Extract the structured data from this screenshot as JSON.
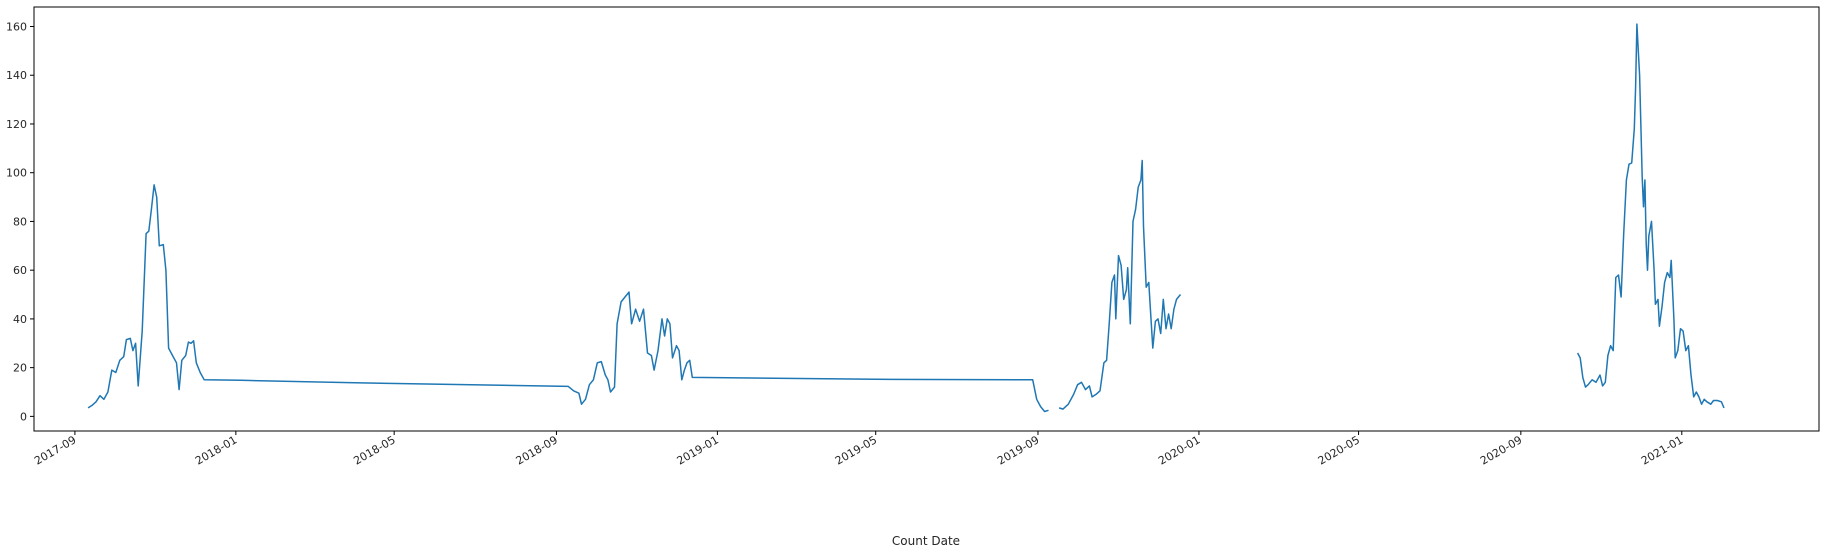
{
  "chart_data": {
    "type": "line",
    "title": "",
    "xlabel": "Count Date",
    "ylabel": "",
    "x_axis_type": "date",
    "xlim": [
      "2017-08-01",
      "2021-04-15"
    ],
    "ylim": [
      -6,
      168
    ],
    "x_ticks": [
      {
        "date": "2017-09-01",
        "label": "2017-09"
      },
      {
        "date": "2018-01-01",
        "label": "2018-01"
      },
      {
        "date": "2018-05-01",
        "label": "2018-05"
      },
      {
        "date": "2018-09-01",
        "label": "2018-09"
      },
      {
        "date": "2019-01-01",
        "label": "2019-01"
      },
      {
        "date": "2019-05-01",
        "label": "2019-05"
      },
      {
        "date": "2019-09-01",
        "label": "2019-09"
      },
      {
        "date": "2020-01-01",
        "label": "2020-01"
      },
      {
        "date": "2020-05-01",
        "label": "2020-05"
      },
      {
        "date": "2020-09-01",
        "label": "2020-09"
      },
      {
        "date": "2021-01-01",
        "label": "2021-01"
      }
    ],
    "y_ticks": [
      0,
      20,
      40,
      60,
      80,
      100,
      120,
      140,
      160
    ],
    "grid": false,
    "legend": "none",
    "line_color": "#1f77b4",
    "series": [
      {
        "segments": [
          [
            [
              "2017-09-11",
              3.5
            ],
            [
              "2017-09-14",
              4.5
            ],
            [
              "2017-09-17",
              6
            ],
            [
              "2017-09-20",
              8.5
            ],
            [
              "2017-09-23",
              7
            ],
            [
              "2017-09-26",
              10
            ],
            [
              "2017-09-29",
              19
            ],
            [
              "2017-10-02",
              18
            ],
            [
              "2017-10-05",
              23
            ],
            [
              "2017-10-08",
              24.5
            ],
            [
              "2017-10-10",
              31.5
            ],
            [
              "2017-10-13",
              32
            ],
            [
              "2017-10-15",
              27
            ],
            [
              "2017-10-17",
              30
            ],
            [
              "2017-10-19",
              12.5
            ],
            [
              "2017-10-22",
              35
            ],
            [
              "2017-10-25",
              75
            ],
            [
              "2017-10-27",
              76
            ],
            [
              "2017-10-29",
              85
            ],
            [
              "2017-10-31",
              95
            ],
            [
              "2017-11-02",
              90
            ],
            [
              "2017-11-04",
              70
            ],
            [
              "2017-11-07",
              70.5
            ],
            [
              "2017-11-09",
              60
            ],
            [
              "2017-11-11",
              28
            ],
            [
              "2017-11-14",
              25
            ],
            [
              "2017-11-17",
              22
            ],
            [
              "2017-11-19",
              11
            ],
            [
              "2017-11-21",
              23
            ],
            [
              "2017-11-24",
              25
            ],
            [
              "2017-11-26",
              30.5
            ],
            [
              "2017-11-28",
              30
            ],
            [
              "2017-11-30",
              31
            ],
            [
              "2017-12-02",
              22
            ],
            [
              "2017-12-05",
              18
            ],
            [
              "2017-12-08",
              15
            ],
            [
              "2018-01-05",
              14.8
            ],
            [
              "2018-04-01",
              13.8
            ],
            [
              "2018-09-10",
              12.3
            ],
            [
              "2018-09-14",
              10.5
            ],
            [
              "2018-09-18",
              9.5
            ],
            [
              "2018-09-20",
              5
            ],
            [
              "2018-09-23",
              7
            ],
            [
              "2018-09-26",
              13
            ],
            [
              "2018-09-29",
              15
            ],
            [
              "2018-10-02",
              22
            ],
            [
              "2018-10-05",
              22.5
            ],
            [
              "2018-10-08",
              17
            ],
            [
              "2018-10-10",
              15
            ],
            [
              "2018-10-12",
              10
            ],
            [
              "2018-10-15",
              12
            ],
            [
              "2018-10-17",
              38
            ],
            [
              "2018-10-20",
              47
            ],
            [
              "2018-10-23",
              49
            ],
            [
              "2018-10-26",
              51
            ],
            [
              "2018-10-28",
              38
            ],
            [
              "2018-10-31",
              44
            ],
            [
              "2018-11-03",
              39
            ],
            [
              "2018-11-06",
              44
            ],
            [
              "2018-11-09",
              26
            ],
            [
              "2018-11-12",
              25
            ],
            [
              "2018-11-14",
              19
            ],
            [
              "2018-11-17",
              27
            ],
            [
              "2018-11-20",
              40
            ],
            [
              "2018-11-22",
              33
            ],
            [
              "2018-11-24",
              40
            ],
            [
              "2018-11-26",
              38
            ],
            [
              "2018-11-28",
              24
            ],
            [
              "2018-12-01",
              29
            ],
            [
              "2018-12-03",
              27
            ],
            [
              "2018-12-05",
              15
            ],
            [
              "2018-12-07",
              19
            ],
            [
              "2018-12-09",
              22
            ],
            [
              "2018-12-11",
              23
            ],
            [
              "2018-12-13",
              16
            ],
            [
              "2019-05-01",
              15.2
            ],
            [
              "2019-08-28",
              15
            ],
            [
              "2019-08-31",
              7
            ],
            [
              "2019-09-03",
              4
            ],
            [
              "2019-09-06",
              2
            ],
            [
              "2019-09-09",
              2.5
            ]
          ],
          [
            [
              "2019-09-17",
              3.5
            ],
            [
              "2019-09-20",
              3
            ],
            [
              "2019-09-24",
              5
            ],
            [
              "2019-09-28",
              9
            ],
            [
              "2019-10-01",
              13
            ],
            [
              "2019-10-04",
              14
            ],
            [
              "2019-10-07",
              11
            ],
            [
              "2019-10-10",
              12.5
            ],
            [
              "2019-10-12",
              8
            ],
            [
              "2019-10-15",
              9
            ],
            [
              "2019-10-18",
              10.5
            ],
            [
              "2019-10-21",
              22
            ],
            [
              "2019-10-23",
              23
            ],
            [
              "2019-10-25",
              38
            ],
            [
              "2019-10-27",
              55
            ],
            [
              "2019-10-29",
              58
            ],
            [
              "2019-10-30",
              40
            ],
            [
              "2019-11-01",
              66
            ],
            [
              "2019-11-03",
              62
            ],
            [
              "2019-11-05",
              48
            ],
            [
              "2019-11-07",
              52
            ],
            [
              "2019-11-08",
              61
            ],
            [
              "2019-11-10",
              38
            ],
            [
              "2019-11-12",
              80
            ],
            [
              "2019-11-14",
              85
            ],
            [
              "2019-11-16",
              94
            ],
            [
              "2019-11-18",
              97
            ],
            [
              "2019-11-19",
              105
            ],
            [
              "2019-11-20",
              78
            ],
            [
              "2019-11-22",
              53
            ],
            [
              "2019-11-24",
              55
            ],
            [
              "2019-11-25",
              46
            ],
            [
              "2019-11-27",
              28
            ],
            [
              "2019-11-29",
              39
            ],
            [
              "2019-12-01",
              40
            ],
            [
              "2019-12-03",
              34
            ],
            [
              "2019-12-05",
              48
            ],
            [
              "2019-12-07",
              36
            ],
            [
              "2019-12-09",
              42
            ],
            [
              "2019-12-11",
              36
            ],
            [
              "2019-12-13",
              44
            ],
            [
              "2019-12-15",
              48
            ],
            [
              "2019-12-18",
              50
            ]
          ],
          [
            [
              "2020-10-14",
              26
            ],
            [
              "2020-10-16",
              24
            ],
            [
              "2020-10-18",
              16
            ],
            [
              "2020-10-20",
              12
            ],
            [
              "2020-10-22",
              13
            ],
            [
              "2020-10-25",
              15
            ],
            [
              "2020-10-28",
              14
            ],
            [
              "2020-10-31",
              17
            ],
            [
              "2020-11-02",
              12.5
            ],
            [
              "2020-11-04",
              14
            ],
            [
              "2020-11-06",
              25
            ],
            [
              "2020-11-08",
              29
            ],
            [
              "2020-11-10",
              27
            ],
            [
              "2020-11-12",
              57
            ],
            [
              "2020-11-14",
              58
            ],
            [
              "2020-11-16",
              49
            ],
            [
              "2020-11-18",
              75
            ],
            [
              "2020-11-20",
              97
            ],
            [
              "2020-11-22",
              103.5
            ],
            [
              "2020-11-24",
              104
            ],
            [
              "2020-11-26",
              118
            ],
            [
              "2020-11-27",
              135
            ],
            [
              "2020-11-28",
              161
            ],
            [
              "2020-11-29",
              150
            ],
            [
              "2020-11-30",
              140
            ],
            [
              "2020-12-02",
              98
            ],
            [
              "2020-12-03",
              86
            ],
            [
              "2020-12-04",
              97
            ],
            [
              "2020-12-05",
              71
            ],
            [
              "2020-12-06",
              60
            ],
            [
              "2020-12-07",
              74
            ],
            [
              "2020-12-09",
              80
            ],
            [
              "2020-12-11",
              60
            ],
            [
              "2020-12-12",
              46
            ],
            [
              "2020-12-14",
              48
            ],
            [
              "2020-12-15",
              37
            ],
            [
              "2020-12-17",
              45
            ],
            [
              "2020-12-19",
              55
            ],
            [
              "2020-12-21",
              59
            ],
            [
              "2020-12-23",
              57
            ],
            [
              "2020-12-24",
              64
            ],
            [
              "2020-12-26",
              40
            ],
            [
              "2020-12-27",
              24
            ],
            [
              "2020-12-29",
              27
            ],
            [
              "2020-12-31",
              36
            ],
            [
              "2021-01-02",
              35
            ],
            [
              "2021-01-04",
              27
            ],
            [
              "2021-01-06",
              29
            ],
            [
              "2021-01-08",
              17
            ],
            [
              "2021-01-10",
              8
            ],
            [
              "2021-01-12",
              10
            ],
            [
              "2021-01-14",
              8
            ],
            [
              "2021-01-16",
              5
            ],
            [
              "2021-01-18",
              7
            ],
            [
              "2021-01-20",
              6
            ],
            [
              "2021-01-23",
              5
            ],
            [
              "2021-01-25",
              6.5
            ],
            [
              "2021-01-28",
              6.5
            ],
            [
              "2021-01-31",
              6
            ],
            [
              "2021-02-02",
              3.5
            ]
          ]
        ]
      }
    ]
  }
}
